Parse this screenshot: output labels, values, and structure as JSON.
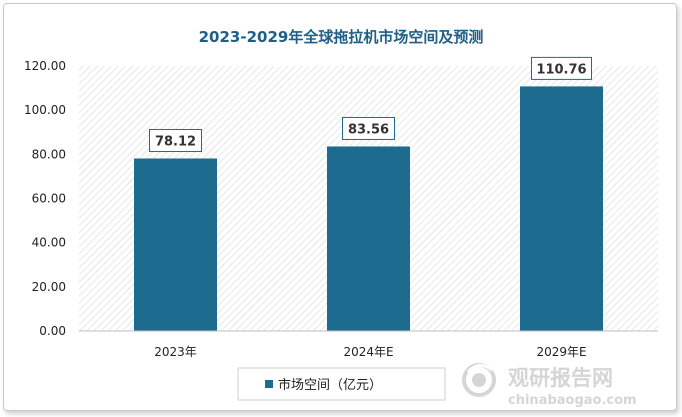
{
  "chart_data": {
    "type": "bar",
    "title": "2023-2029年全球拖拉机市场空间及预测",
    "categories": [
      "2023年",
      "2024年E",
      "2029年E"
    ],
    "series": [
      {
        "name": "市场空间（亿元）",
        "values": [
          78.12,
          83.56,
          110.76
        ]
      }
    ],
    "data_labels": [
      "78.12",
      "83.56",
      "110.76"
    ],
    "ylim": [
      0,
      120
    ],
    "yticks": [
      "0.00",
      "20.00",
      "40.00",
      "60.00",
      "80.00",
      "100.00",
      "120.00"
    ],
    "grid": false,
    "legend_position": "bottom",
    "colors": {
      "bar": "#1d6b8e",
      "title": "#1f5f86"
    }
  },
  "watermark": {
    "brand": "观研报告网",
    "url": "chinabaogao.com"
  }
}
